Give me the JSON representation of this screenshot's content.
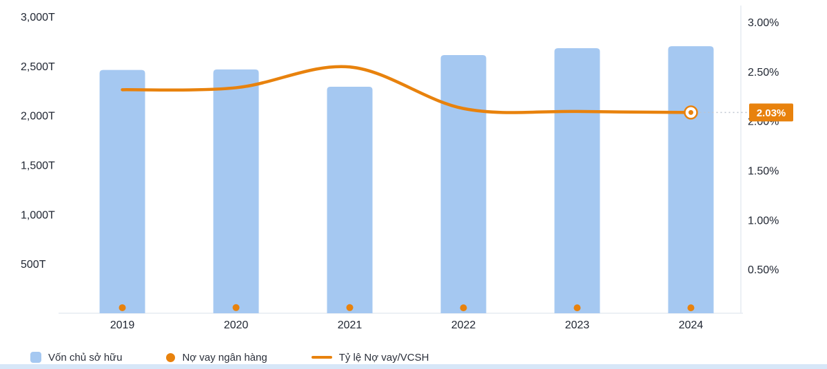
{
  "chart_data": {
    "type": "bar",
    "subtype": "bar-line-combo",
    "categories": [
      "2019",
      "2020",
      "2021",
      "2022",
      "2023",
      "2024"
    ],
    "series": [
      {
        "name": "Vốn chủ sở hữu",
        "type": "bar",
        "axis": "left",
        "unit": "T",
        "color": "#a5c8f1",
        "values": [
          2460,
          2465,
          2290,
          2610,
          2680,
          2700
        ]
      },
      {
        "name": "Nợ vay ngân hàng",
        "type": "point",
        "axis": "left",
        "unit": "T",
        "color": "#e8820d",
        "values": [
          56,
          57,
          57,
          55,
          55,
          55
        ]
      },
      {
        "name": "Tỷ lệ Nợ vay/VCSH",
        "type": "line",
        "axis": "right",
        "unit": "%",
        "color": "#e8820d",
        "values": [
          2.26,
          2.28,
          2.49,
          2.07,
          2.04,
          2.03
        ]
      }
    ],
    "left_axis": {
      "max": 3000,
      "min": 0,
      "ticks": [
        {
          "label": "3,000T",
          "value": 3000
        },
        {
          "label": "2,500T",
          "value": 2500
        },
        {
          "label": "2,000T",
          "value": 2000
        },
        {
          "label": "1,500T",
          "value": 1500
        },
        {
          "label": "1,000T",
          "value": 1000
        },
        {
          "label": "500T",
          "value": 500
        }
      ]
    },
    "right_axis": {
      "max": 3,
      "min": 0,
      "ticks": [
        {
          "label": "3.00%",
          "value": 3
        },
        {
          "label": "2.50%",
          "value": 2.5
        },
        {
          "label": "2.00%",
          "value": 2
        },
        {
          "label": "1.50%",
          "value": 1.5
        },
        {
          "label": "1.00%",
          "value": 1
        },
        {
          "label": "0.50%",
          "value": 0.5
        }
      ]
    },
    "annotation": {
      "label": "2.03%",
      "value": 2.03,
      "color": "#e8820d",
      "text_color": "#ffffff"
    },
    "grid": false,
    "legend_position": "bottom"
  },
  "legend": {
    "items": [
      {
        "label": "Vốn chủ sở hữu",
        "swatch": "square"
      },
      {
        "label": "Nợ vay ngân hàng",
        "swatch": "dot"
      },
      {
        "label": "Tỷ lệ Nợ vay/VCSH",
        "swatch": "line"
      }
    ]
  },
  "colors": {
    "bar": "#a5c8f1",
    "accent_orange": "#e8820d",
    "axis_line": "#e6ebf2",
    "dotted_connector": "#bcc4cf",
    "bottom_strip": "#d7e7f8"
  }
}
